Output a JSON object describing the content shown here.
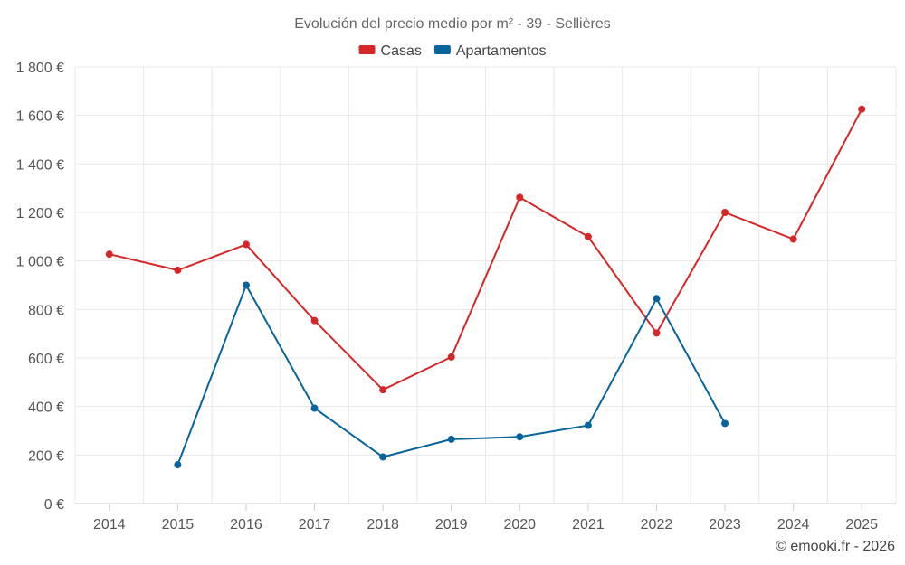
{
  "chart_data": {
    "type": "line",
    "title": "Evolución del precio medio por m² - 39 - Sellières",
    "xlabel": "",
    "ylabel": "",
    "categories": [
      "2014",
      "2015",
      "2016",
      "2017",
      "2018",
      "2019",
      "2020",
      "2021",
      "2022",
      "2023",
      "2024",
      "2025"
    ],
    "ylim": [
      0,
      1800
    ],
    "yticks": [
      0,
      200,
      400,
      600,
      800,
      1000,
      1200,
      1400,
      1600,
      1800
    ],
    "ytick_labels": [
      "0 €",
      "200 €",
      "400 €",
      "600 €",
      "800 €",
      "1 000 €",
      "1 200 €",
      "1 400 €",
      "1 600 €",
      "1 800 €"
    ],
    "grid": true,
    "legend_position": "top-center",
    "series": [
      {
        "name": "Casas",
        "color": "#d62728",
        "values": [
          1028,
          962,
          1068,
          754,
          469,
          604,
          1262,
          1100,
          703,
          1200,
          1090,
          1626
        ]
      },
      {
        "name": "Apartamentos",
        "color": "#08649a",
        "values": [
          null,
          160,
          900,
          393,
          192,
          265,
          275,
          322,
          845,
          330,
          null,
          null
        ]
      }
    ]
  },
  "credit": "© emooki.fr - 2026"
}
